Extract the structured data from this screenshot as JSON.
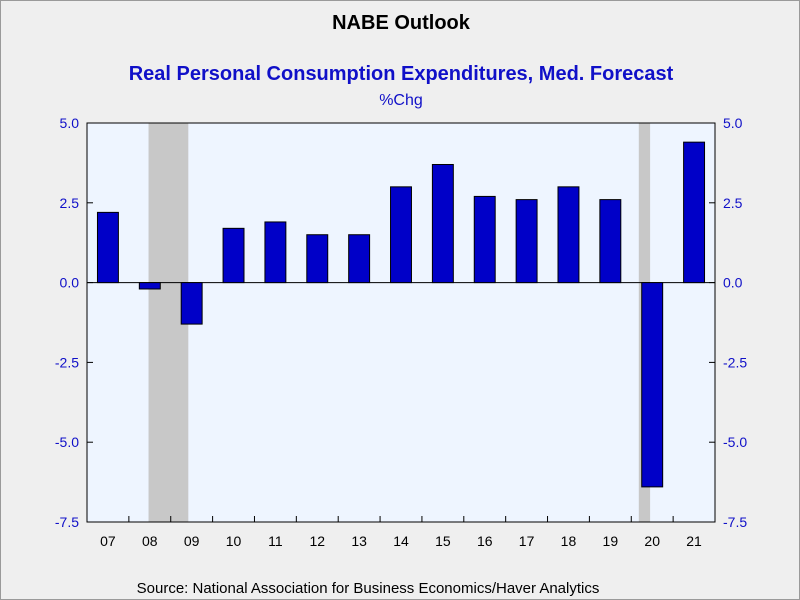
{
  "chart_data": {
    "type": "bar",
    "title": "NABE Outlook",
    "subtitle": "Real Personal Consumption Expenditures, Med. Forecast",
    "units": "%Chg",
    "source": "Source:  National Association for Business Economics/Haver Analytics",
    "categories": [
      "07",
      "08",
      "09",
      "10",
      "11",
      "12",
      "13",
      "14",
      "15",
      "16",
      "17",
      "18",
      "19",
      "20",
      "21"
    ],
    "values": [
      2.2,
      -0.2,
      -1.3,
      1.7,
      1.9,
      1.5,
      1.5,
      3.0,
      3.7,
      2.7,
      2.6,
      3.0,
      2.6,
      -6.4,
      4.4
    ],
    "ylim": [
      -7.5,
      5.0
    ],
    "yticks": [
      5.0,
      2.5,
      0.0,
      -2.5,
      -5.0,
      -7.5
    ],
    "ytick_labels": [
      "5.0",
      "2.5",
      "0.0",
      "-2.5",
      "-5.0",
      "-7.5"
    ],
    "recessions": [
      {
        "start": "08",
        "end": "09"
      },
      {
        "start": "20",
        "end": "20"
      }
    ],
    "grid": false,
    "colors": {
      "bar": "#0000c8",
      "plot_bg": "#eef5ff",
      "recession": "#c8c8c8",
      "axis_text": "#1010c8",
      "page_bg": "#efefef"
    }
  }
}
